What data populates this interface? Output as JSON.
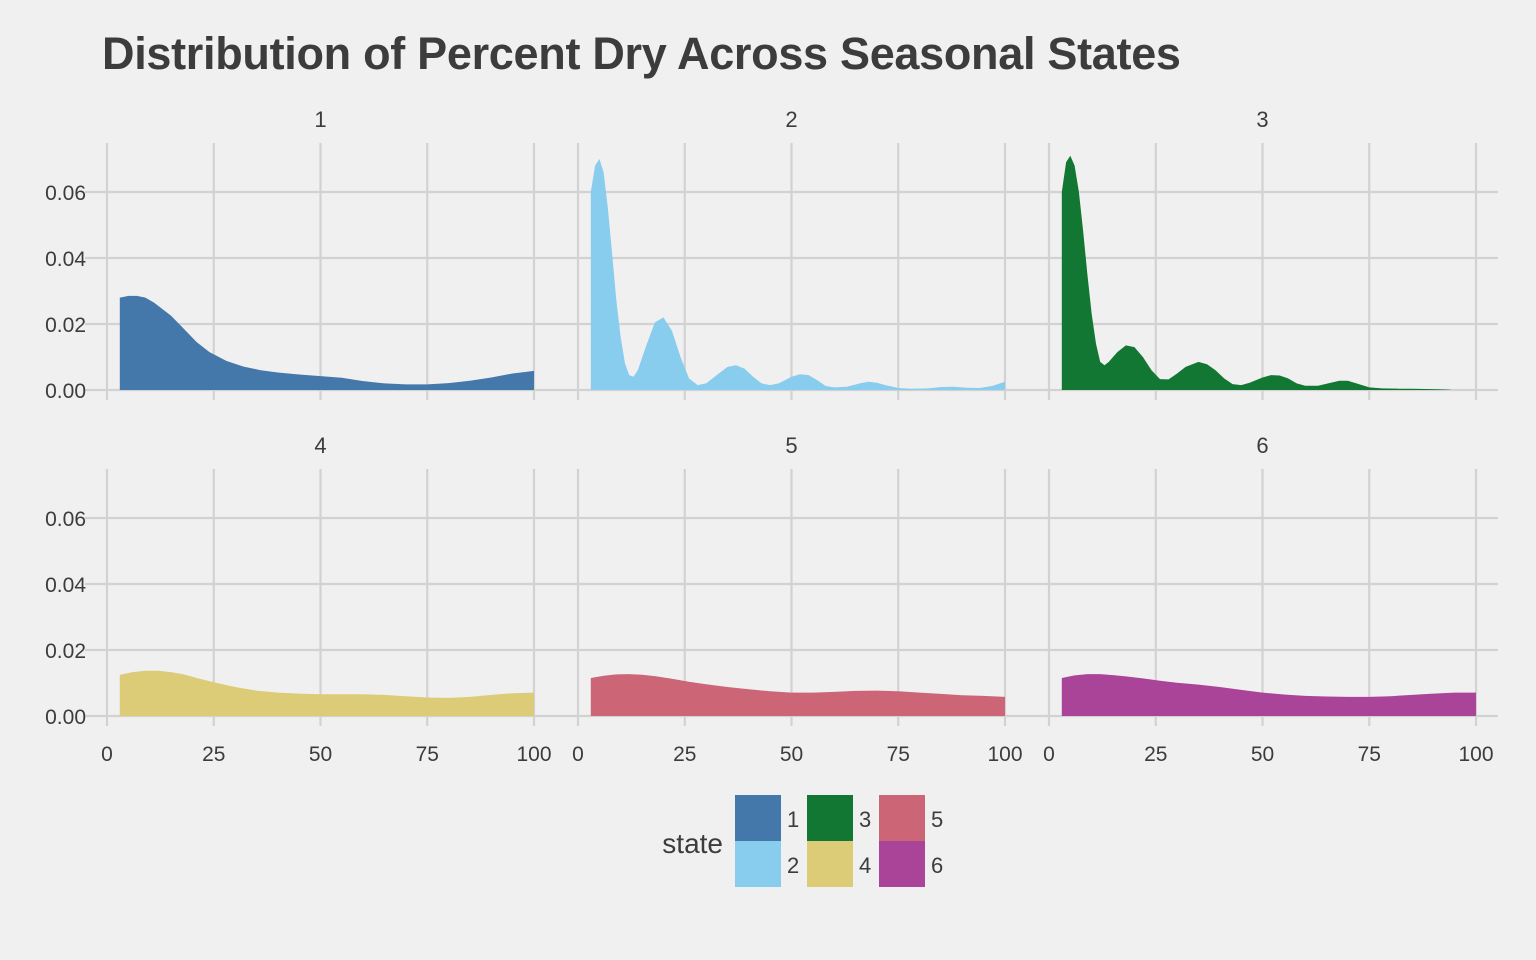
{
  "chart_data": {
    "type": "area",
    "title": "Distribution of Percent Dry Across Seasonal States",
    "xlabel": "",
    "ylabel": "",
    "xlim": [
      0,
      100
    ],
    "ylim": [
      0,
      0.07
    ],
    "x_ticks": [
      "0",
      "25",
      "50",
      "75",
      "100"
    ],
    "y_ticks": [
      "0.00",
      "0.02",
      "0.04",
      "0.06"
    ],
    "grid": true,
    "legend": {
      "title": "state",
      "placement": "bottom",
      "items": [
        {
          "label": "1",
          "color": "#4477AA"
        },
        {
          "label": "2",
          "color": "#88CCEE"
        },
        {
          "label": "3",
          "color": "#117733"
        },
        {
          "label": "4",
          "color": "#DDCC77"
        },
        {
          "label": "5",
          "color": "#CC6677"
        },
        {
          "label": "6",
          "color": "#AA4499"
        }
      ]
    },
    "panels": [
      {
        "name": "1",
        "color": "#4477AA",
        "x": [
          3,
          5,
          7,
          9,
          11,
          13,
          15,
          18,
          21,
          24,
          28,
          32,
          36,
          40,
          45,
          50,
          55,
          60,
          65,
          70,
          75,
          80,
          85,
          90,
          95,
          100
        ],
        "y": [
          0.028,
          0.0285,
          0.0285,
          0.028,
          0.0265,
          0.0245,
          0.0225,
          0.0185,
          0.0145,
          0.0115,
          0.0088,
          0.0071,
          0.006,
          0.0053,
          0.0047,
          0.0042,
          0.0037,
          0.0027,
          0.002,
          0.0017,
          0.0017,
          0.0021,
          0.0028,
          0.0038,
          0.005,
          0.0058
        ]
      },
      {
        "name": "2",
        "color": "#88CCEE",
        "x": [
          3,
          4,
          5,
          6,
          7,
          8,
          9,
          10,
          11,
          12,
          13,
          14,
          16,
          18,
          20,
          22,
          24,
          26,
          28,
          30,
          32,
          35,
          37,
          39,
          41,
          43,
          45,
          47,
          50,
          52,
          54,
          56,
          58,
          60,
          63,
          66,
          68,
          70,
          72,
          75,
          78,
          82,
          85,
          88,
          91,
          94,
          97,
          100
        ],
        "y": [
          0.06,
          0.068,
          0.07,
          0.066,
          0.055,
          0.041,
          0.027,
          0.016,
          0.008,
          0.0045,
          0.004,
          0.006,
          0.0135,
          0.0205,
          0.022,
          0.018,
          0.01,
          0.0035,
          0.0015,
          0.002,
          0.004,
          0.007,
          0.0075,
          0.0065,
          0.004,
          0.002,
          0.0015,
          0.002,
          0.004,
          0.0048,
          0.0045,
          0.003,
          0.0012,
          0.0008,
          0.001,
          0.002,
          0.0025,
          0.0022,
          0.0015,
          0.0006,
          0.0004,
          0.0005,
          0.0009,
          0.001,
          0.0007,
          0.0006,
          0.0012,
          0.0025
        ]
      },
      {
        "name": "3",
        "color": "#117733",
        "x": [
          3,
          4,
          5,
          6,
          7,
          8,
          9,
          10,
          11,
          12,
          13,
          14,
          16,
          18,
          20,
          22,
          24,
          26,
          28,
          30,
          32,
          35,
          37,
          39,
          41,
          43,
          45,
          47,
          50,
          52,
          54,
          56,
          58,
          60,
          63,
          66,
          68,
          70,
          72,
          75,
          78,
          82,
          85,
          88,
          91,
          94
        ],
        "y": [
          0.06,
          0.069,
          0.071,
          0.068,
          0.06,
          0.048,
          0.035,
          0.023,
          0.014,
          0.0085,
          0.0075,
          0.0085,
          0.0115,
          0.0135,
          0.013,
          0.01,
          0.006,
          0.0033,
          0.0032,
          0.005,
          0.007,
          0.0085,
          0.0078,
          0.006,
          0.0035,
          0.0018,
          0.0015,
          0.0022,
          0.0038,
          0.0045,
          0.0044,
          0.0035,
          0.002,
          0.0013,
          0.0013,
          0.0022,
          0.0028,
          0.0028,
          0.002,
          0.0008,
          0.0005,
          0.0004,
          0.0004,
          0.0003,
          0.0002,
          0.0001
        ]
      },
      {
        "name": "4",
        "color": "#DDCC77",
        "x": [
          3,
          6,
          9,
          12,
          15,
          18,
          21,
          25,
          30,
          35,
          40,
          45,
          50,
          55,
          60,
          65,
          70,
          75,
          80,
          85,
          90,
          95,
          100
        ],
        "y": [
          0.0125,
          0.0133,
          0.0137,
          0.0137,
          0.0133,
          0.0126,
          0.0115,
          0.0102,
          0.0088,
          0.0077,
          0.0071,
          0.0068,
          0.0066,
          0.0066,
          0.0066,
          0.0064,
          0.006,
          0.0056,
          0.0055,
          0.0058,
          0.0064,
          0.0069,
          0.0071
        ]
      },
      {
        "name": "5",
        "color": "#CC6677",
        "x": [
          3,
          6,
          9,
          12,
          15,
          18,
          22,
          26,
          30,
          35,
          40,
          45,
          50,
          55,
          60,
          65,
          70,
          75,
          80,
          85,
          90,
          95,
          100
        ],
        "y": [
          0.0115,
          0.0122,
          0.0126,
          0.0127,
          0.0125,
          0.0121,
          0.0113,
          0.0104,
          0.0096,
          0.0088,
          0.0081,
          0.0075,
          0.0071,
          0.0071,
          0.0073,
          0.0076,
          0.0077,
          0.0075,
          0.0071,
          0.0067,
          0.0063,
          0.0061,
          0.0058
        ]
      },
      {
        "name": "6",
        "color": "#AA4499",
        "x": [
          3,
          6,
          9,
          12,
          15,
          18,
          22,
          26,
          30,
          35,
          40,
          45,
          50,
          55,
          60,
          65,
          70,
          75,
          80,
          85,
          90,
          95,
          100
        ],
        "y": [
          0.0115,
          0.0123,
          0.0127,
          0.0127,
          0.0124,
          0.012,
          0.0114,
          0.0107,
          0.0101,
          0.0095,
          0.0088,
          0.0079,
          0.0071,
          0.0065,
          0.0061,
          0.0059,
          0.0058,
          0.0058,
          0.006,
          0.0064,
          0.0068,
          0.0071,
          0.0071
        ]
      }
    ]
  }
}
